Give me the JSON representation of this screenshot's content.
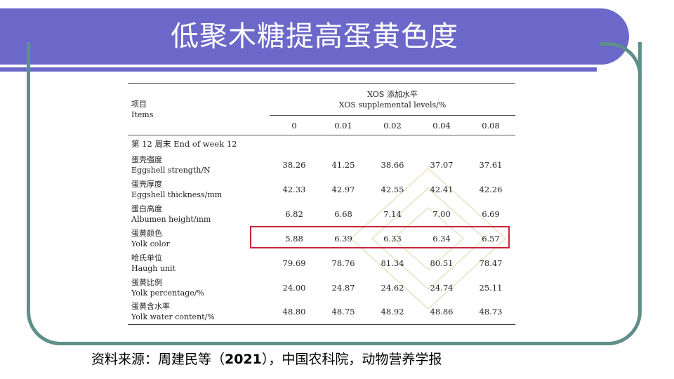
{
  "slide": {
    "title": "低聚木糖提高蛋黄色度",
    "source_prefix": "资料来源：周建民等（",
    "source_year": "2021",
    "source_suffix": "），中国农科院，动物营养学报"
  },
  "table": {
    "header_item_cn": "项目",
    "header_item_en": "Items",
    "levels_cn": "XOS 添加水平",
    "levels_en": "XOS supplemental levels/%",
    "levels": [
      "0",
      "0.01",
      "0.02",
      "0.04",
      "0.08"
    ],
    "section": "第 12 周末 End of week 12",
    "rows": [
      {
        "cn": "蛋壳强度",
        "en": "Eggshell strength/N",
        "values": [
          "38.26",
          "41.25",
          "38.66",
          "37.07",
          "37.61"
        ]
      },
      {
        "cn": "蛋壳厚度",
        "en": "Eggshell thickness/mm",
        "values": [
          "42.33",
          "42.97",
          "42.55",
          "42.41",
          "42.26"
        ]
      },
      {
        "cn": "蛋白高度",
        "en": "Albumen height/mm",
        "values": [
          "6.82",
          "6.68",
          "7.14",
          "7.00",
          "6.69"
        ]
      },
      {
        "cn": "蛋黄颜色",
        "en": "Yolk color",
        "values": [
          "5.88",
          "6.39",
          "6.33",
          "6.34",
          "6.57"
        ]
      },
      {
        "cn": "哈氏单位",
        "en": "Haugh unit",
        "values": [
          "79.69",
          "78.76",
          "81.34",
          "80.51",
          "78.47"
        ]
      },
      {
        "cn": "蛋黄比例",
        "en": "Yolk percentage/%",
        "values": [
          "24.00",
          "24.87",
          "24.62",
          "24.74",
          "25.11"
        ]
      },
      {
        "cn": "蛋黄含水率",
        "en": "Yolk water content/%",
        "values": [
          "48.80",
          "48.75",
          "48.92",
          "48.86",
          "48.73"
        ]
      }
    ],
    "highlighted_row": "Yolk color"
  },
  "colors": {
    "title_bar": "#6b68c9",
    "frame": "#5f8f8a",
    "highlight_box": "#c8243a"
  }
}
